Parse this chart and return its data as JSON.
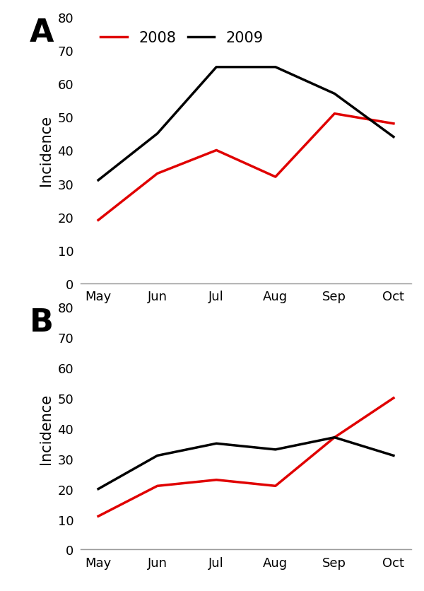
{
  "months": [
    "May",
    "Jun",
    "Jul",
    "Aug",
    "Sep",
    "Oct"
  ],
  "panel_A": {
    "label": "A",
    "year_2008": [
      19,
      33,
      40,
      32,
      51,
      48
    ],
    "year_2009": [
      31,
      45,
      65,
      65,
      57,
      44
    ]
  },
  "panel_B": {
    "label": "B",
    "year_2008": [
      11,
      21,
      23,
      21,
      37,
      50
    ],
    "year_2009": [
      20,
      31,
      35,
      33,
      37,
      31
    ]
  },
  "color_2008": "#e00000",
  "color_2009": "#000000",
  "ylim": [
    0,
    80
  ],
  "yticks": [
    0,
    10,
    20,
    30,
    40,
    50,
    60,
    70,
    80
  ],
  "ylabel": "Incidence",
  "legend_labels": [
    "2008",
    "2009"
  ],
  "linewidth": 2.5,
  "axis_color": "#999999",
  "label_fontsize": 32,
  "tick_fontsize": 13,
  "ylabel_fontsize": 15,
  "legend_fontsize": 15
}
